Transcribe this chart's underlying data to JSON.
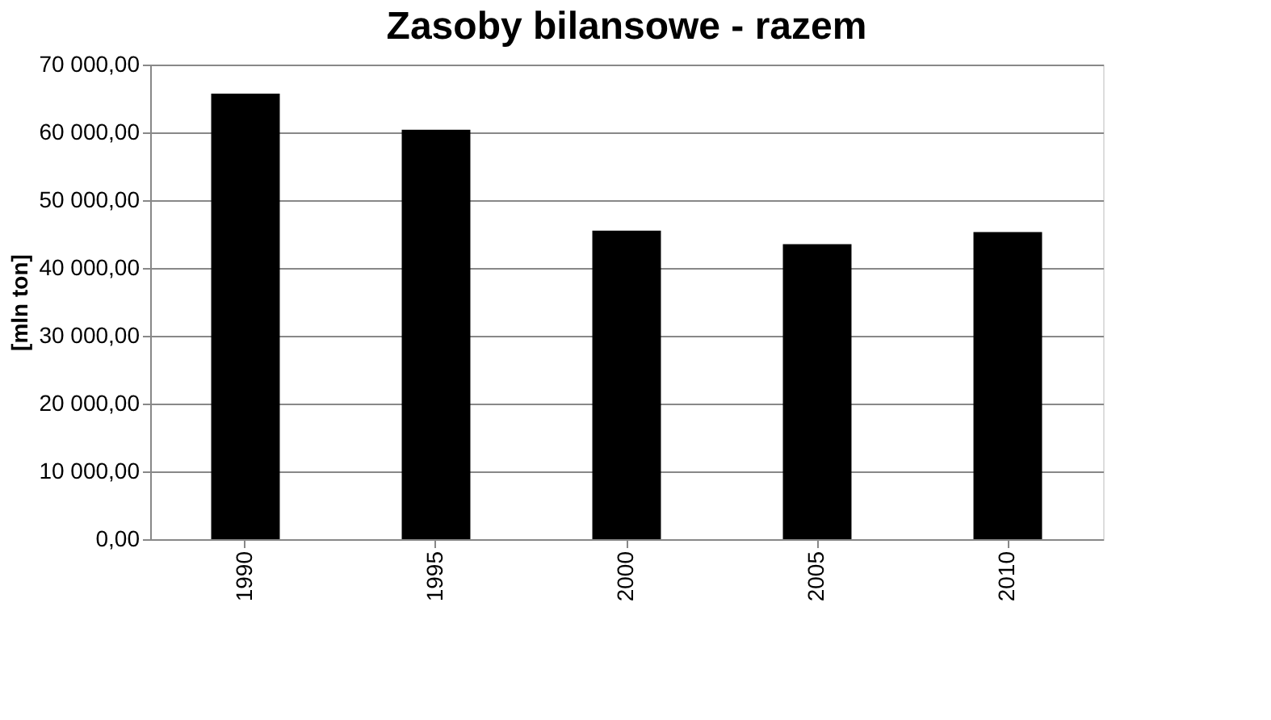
{
  "chart_data": {
    "type": "bar",
    "title": "Zasoby bilansowe - razem",
    "ylabel": "[mln ton]",
    "categories": [
      "1990",
      "1995",
      "2000",
      "2005",
      "2010"
    ],
    "values": [
      65700,
      60400,
      45500,
      43500,
      45300
    ],
    "color": "#000000",
    "ylim": [
      0,
      70000
    ],
    "yticks": [
      {
        "value": 0,
        "label": "0,00"
      },
      {
        "value": 10000,
        "label": "10 000,00"
      },
      {
        "value": 20000,
        "label": "20 000,00"
      },
      {
        "value": 30000,
        "label": "30 000,00"
      },
      {
        "value": 40000,
        "label": "40 000,00"
      },
      {
        "value": 50000,
        "label": "50 000,00"
      },
      {
        "value": 60000,
        "label": "60 000,00"
      },
      {
        "value": 70000,
        "label": "70 000,00"
      }
    ],
    "grid": "y"
  }
}
